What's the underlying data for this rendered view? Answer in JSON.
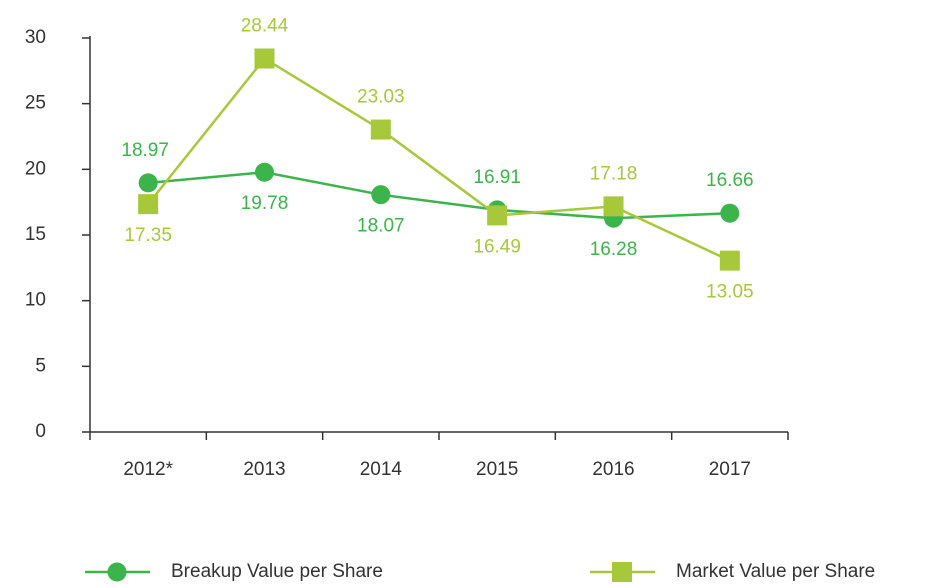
{
  "chart_data": {
    "type": "line",
    "categories": [
      "2012*",
      "2013",
      "2014",
      "2015",
      "2016",
      "2017"
    ],
    "series": [
      {
        "name": "Breakup Value per Share",
        "color": "#3cb44b",
        "marker": "circle",
        "values": [
          18.97,
          19.78,
          18.07,
          16.91,
          16.28,
          16.66
        ]
      },
      {
        "name": "Market Value per Share",
        "color": "#a6c83a",
        "marker": "square",
        "values": [
          17.35,
          28.44,
          23.03,
          16.49,
          17.18,
          13.05
        ]
      }
    ],
    "ylim": [
      0,
      30
    ],
    "yticks": [
      0,
      5,
      10,
      15,
      20,
      25,
      30
    ],
    "grid": false,
    "legend": "bottom"
  }
}
